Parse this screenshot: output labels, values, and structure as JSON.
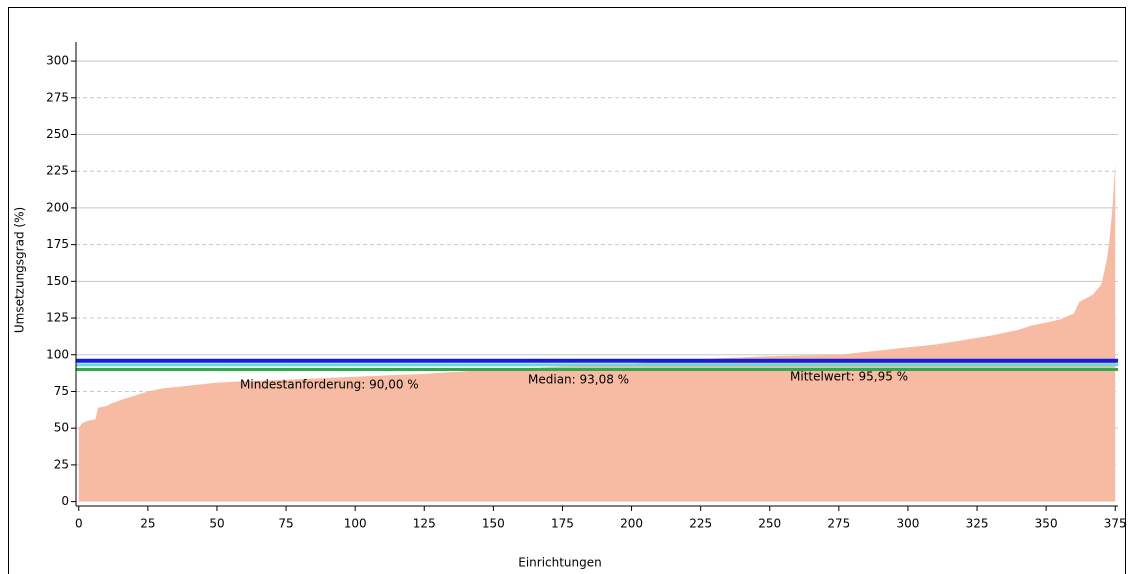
{
  "chart_data": {
    "type": "area",
    "x_label": "Einrichtungen",
    "y_label": "Umsetzungsgrad (%)",
    "x": [
      0,
      1,
      3,
      6,
      7,
      10,
      12,
      15,
      20,
      25,
      30,
      40,
      50,
      60,
      75,
      100,
      125,
      150,
      175,
      200,
      225,
      250,
      275,
      280,
      290,
      300,
      310,
      320,
      330,
      340,
      345,
      350,
      355,
      360,
      362,
      365,
      367,
      370,
      372,
      373,
      374,
      375
    ],
    "values": [
      50,
      53,
      55,
      56,
      64,
      65,
      67,
      69,
      72,
      75,
      77,
      79,
      81,
      82,
      83,
      85,
      87,
      90,
      92,
      94,
      97,
      99,
      100,
      101,
      103,
      105,
      107,
      110,
      113,
      117,
      120,
      122,
      124,
      128,
      136,
      139,
      141,
      148,
      165,
      180,
      200,
      230
    ],
    "color": "#f7bba3",
    "xlim": [
      -1,
      376
    ],
    "ylim": [
      -3,
      313
    ],
    "xticks": [
      0,
      25,
      50,
      75,
      100,
      125,
      150,
      175,
      200,
      225,
      250,
      275,
      300,
      325,
      350,
      375
    ],
    "yticks": [
      0,
      25,
      50,
      75,
      100,
      125,
      150,
      175,
      200,
      225,
      250,
      275,
      300
    ],
    "grid": true,
    "reference_lines": [
      {
        "value": 90,
        "label": "Mindestanforderung: 90,00 %",
        "color": "#2fa84f"
      },
      {
        "value": 93.08,
        "label": "Median: 93,08 %",
        "color": "#5fe0d0"
      },
      {
        "value": 95.95,
        "label": "Mittelwert: 95,95 %",
        "color": "#1a1adc"
      }
    ]
  }
}
